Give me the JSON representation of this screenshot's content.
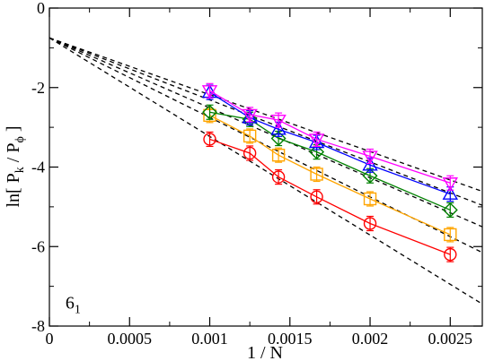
{
  "chart_data": {
    "type": "line",
    "title": "",
    "xlabel": "1 / N",
    "ylabel": {
      "prefix": "ln[ P",
      "sub1": "k",
      "mid": " / P",
      "sub2": "ϕ",
      "suffix": " ]"
    },
    "xlim": [
      0,
      0.0027
    ],
    "ylim": [
      -8,
      0
    ],
    "grid": false,
    "xticks": [
      0,
      0.0005,
      0.001,
      0.0015,
      0.002,
      0.0025
    ],
    "xtick_labels": [
      "0",
      "0.0005",
      "0.001",
      "0.0015",
      "0.002",
      "0.0025"
    ],
    "yticks": [
      0,
      -2,
      -4,
      -6,
      -8
    ],
    "ytick_labels": [
      "0",
      "-2",
      "-4",
      "-6",
      "-8"
    ],
    "annotation": {
      "main": "6",
      "sub": "1",
      "x": 0.0001,
      "y": -7.4
    },
    "series": [
      {
        "marker": "circle",
        "color": "#ff0000",
        "x": [
          0.001,
          0.00125,
          0.001429,
          0.001667,
          0.002,
          0.0025
        ],
        "y": [
          -3.3,
          -3.65,
          -4.25,
          -4.75,
          -5.42,
          -6.2
        ],
        "fit": {
          "intercept": -0.75,
          "slope": -2480
        }
      },
      {
        "marker": "square",
        "color": "#ffa500",
        "x": [
          0.001,
          0.00125,
          0.001429,
          0.001667,
          0.002,
          0.0025
        ],
        "y": [
          -2.7,
          -3.22,
          -3.7,
          -4.18,
          -4.8,
          -5.7
        ],
        "fit": {
          "intercept": -0.75,
          "slope": -2000
        }
      },
      {
        "marker": "diamond",
        "color": "#008000",
        "x": [
          0.001,
          0.00125,
          0.001429,
          0.001667,
          0.002,
          0.0025
        ],
        "y": [
          -2.62,
          -2.8,
          -3.28,
          -3.62,
          -4.22,
          -5.08
        ],
        "fit": {
          "intercept": -0.75,
          "slope": -1760
        }
      },
      {
        "marker": "triangle-up",
        "color": "#0000ff",
        "x": [
          0.001,
          0.00125,
          0.001429,
          0.001667,
          0.002,
          0.0025
        ],
        "y": [
          -2.12,
          -2.76,
          -3.05,
          -3.38,
          -3.95,
          -4.68
        ],
        "fit": {
          "intercept": -0.75,
          "slope": -1560
        }
      },
      {
        "marker": "triangle-down",
        "color": "#ff00ff",
        "x": [
          0.001,
          0.00125,
          0.001429,
          0.001667,
          0.002,
          0.0025
        ],
        "y": [
          -2.08,
          -2.68,
          -2.82,
          -3.3,
          -3.73,
          -4.4
        ],
        "fit": {
          "intercept": -0.75,
          "slope": -1430
        }
      }
    ]
  }
}
